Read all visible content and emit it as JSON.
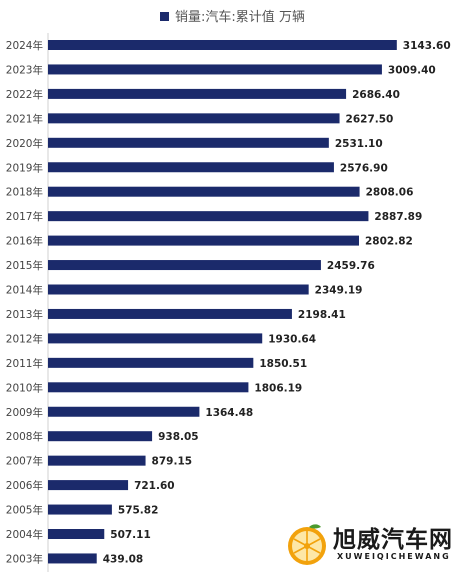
{
  "colors": {
    "bar": "#1b2a6b",
    "axis": "#d0d0d0",
    "watermark_orange": "#f2a20c"
  },
  "chart_data": {
    "type": "bar",
    "orientation": "horizontal",
    "legend": {
      "label": "销量:汽车:累计值 万辆",
      "placement": "top-center"
    },
    "categories": [
      "2024年",
      "2023年",
      "2022年",
      "2021年",
      "2020年",
      "2019年",
      "2018年",
      "2017年",
      "2016年",
      "2015年",
      "2014年",
      "2013年",
      "2012年",
      "2011年",
      "2010年",
      "2009年",
      "2008年",
      "2007年",
      "2006年",
      "2005年",
      "2004年",
      "2003年"
    ],
    "values": [
      3143.6,
      3009.4,
      2686.4,
      2627.5,
      2531.1,
      2576.9,
      2808.06,
      2887.89,
      2802.82,
      2459.76,
      2349.19,
      2198.41,
      1930.64,
      1850.51,
      1806.19,
      1364.48,
      938.05,
      879.15,
      721.6,
      575.82,
      507.11,
      439.08
    ],
    "value_labels": [
      "3143.60",
      "3009.40",
      "2686.40",
      "2627.50",
      "2531.10",
      "2576.90",
      "2808.06",
      "2887.89",
      "2802.82",
      "2459.76",
      "2349.19",
      "2198.41",
      "1930.64",
      "1850.51",
      "1806.19",
      "1364.48",
      "938.05",
      "879.15",
      "721.60",
      "575.82",
      "507.11",
      "439.08"
    ],
    "xlim": [
      0,
      3650
    ],
    "grid": false
  },
  "watermark": {
    "title": "旭威汽车网",
    "subtitle": "XUWEIQICHEWANG",
    "icon": "orange-slice-icon"
  }
}
